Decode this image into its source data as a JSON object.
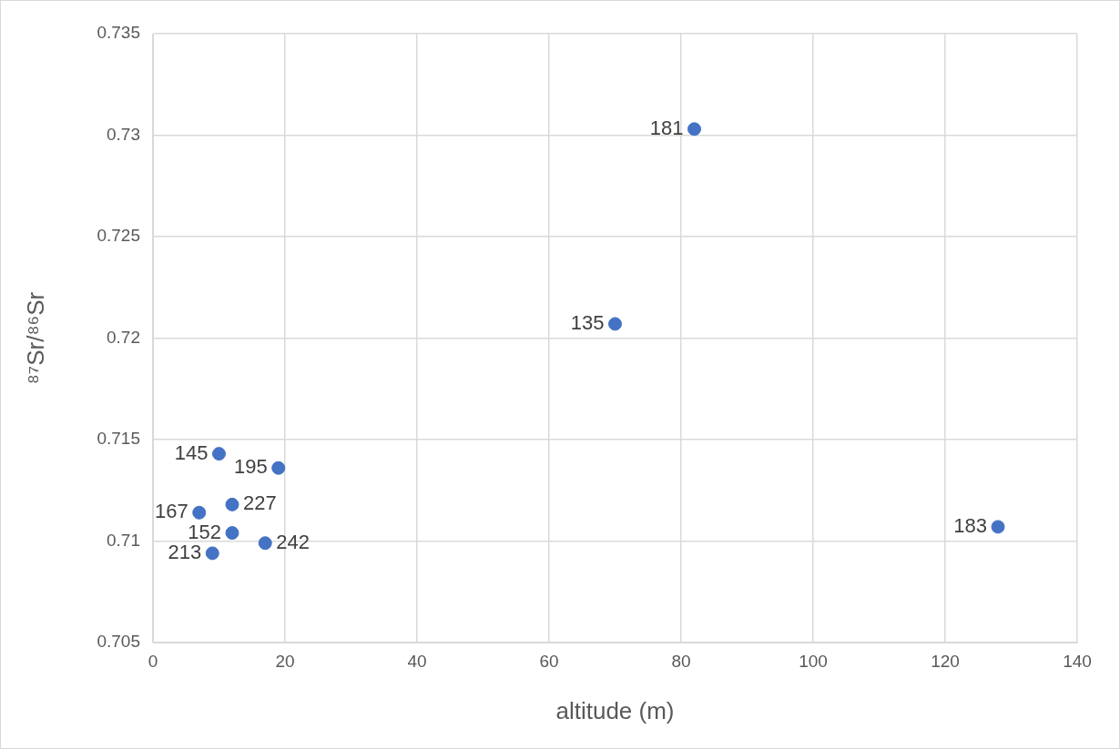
{
  "chart_data": {
    "type": "scatter",
    "xlabel": "altitude (m)",
    "ylabel": "⁸⁷Sr/⁸⁶Sr",
    "x": [
      82,
      70,
      10,
      19,
      12,
      7,
      12,
      17,
      9,
      128
    ],
    "series": [
      {
        "color": "#4472c4",
        "values": [
          0.7303,
          0.7207,
          0.7143,
          0.7136,
          0.7118,
          0.7114,
          0.7104,
          0.7099,
          0.7094,
          0.7107
        ]
      }
    ],
    "annotations": [
      {
        "text": "181",
        "x": 82,
        "y": 0.7303
      },
      {
        "text": "135",
        "x": 70,
        "y": 0.7207
      },
      {
        "text": "145",
        "x": 10,
        "y": 0.7143
      },
      {
        "text": "195",
        "x": 19,
        "y": 0.7136
      },
      {
        "text": "227",
        "x": 12,
        "y": 0.7118
      },
      {
        "text": "167",
        "x": 7,
        "y": 0.7114
      },
      {
        "text": "152",
        "x": 12,
        "y": 0.7104
      },
      {
        "text": "242",
        "x": 17,
        "y": 0.7099
      },
      {
        "text": "213",
        "x": 9,
        "y": 0.7094
      },
      {
        "text": "183",
        "x": 128,
        "y": 0.7107
      }
    ],
    "xlim": [
      0,
      140
    ],
    "xticks": [
      0,
      20,
      40,
      60,
      80,
      100,
      120,
      140
    ],
    "ylim": [
      0.705,
      0.735
    ],
    "yticks": [
      0.705,
      0.71,
      0.715,
      0.72,
      0.725,
      0.73,
      0.735
    ],
    "grid": true,
    "marker": "circle",
    "legend": false
  }
}
